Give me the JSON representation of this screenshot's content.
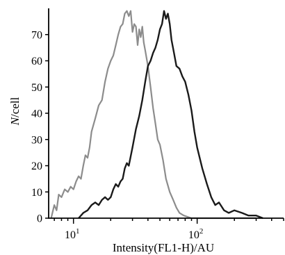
{
  "chart_data": {
    "type": "line",
    "title": "",
    "xlabel": "Intensity(FL1-H)/AU",
    "ylabel_italic": "N",
    "ylabel_rest": "/cell",
    "xscale": "log",
    "xlim": [
      6.3,
      500
    ],
    "ylim": [
      0,
      80
    ],
    "grid": false,
    "legend": "none",
    "yticks": [
      0,
      10,
      20,
      30,
      40,
      50,
      60,
      70
    ],
    "xticks": [
      {
        "value": 10,
        "base": "10",
        "exp": "1"
      },
      {
        "value": 100,
        "base": "10",
        "exp": "2"
      }
    ],
    "series": [
      {
        "color": "#8c8c8c",
        "points": [
          [
            6.6,
            0
          ],
          [
            7.0,
            5
          ],
          [
            7.3,
            3
          ],
          [
            7.6,
            9
          ],
          [
            8,
            8
          ],
          [
            8.5,
            11
          ],
          [
            9,
            10
          ],
          [
            9.5,
            12
          ],
          [
            10,
            11
          ],
          [
            10.5,
            14
          ],
          [
            11,
            16
          ],
          [
            11.5,
            15
          ],
          [
            12,
            20
          ],
          [
            12.5,
            24
          ],
          [
            13,
            23
          ],
          [
            13.5,
            27
          ],
          [
            14,
            33
          ],
          [
            15,
            38
          ],
          [
            16,
            43
          ],
          [
            17,
            45
          ],
          [
            18,
            52
          ],
          [
            19,
            57
          ],
          [
            20,
            60
          ],
          [
            21,
            62
          ],
          [
            22,
            66
          ],
          [
            23,
            70
          ],
          [
            24,
            73
          ],
          [
            25,
            74
          ],
          [
            26,
            78
          ],
          [
            27,
            79
          ],
          [
            28,
            77
          ],
          [
            29,
            79
          ],
          [
            30,
            71
          ],
          [
            31,
            74
          ],
          [
            32,
            73
          ],
          [
            33,
            66
          ],
          [
            34,
            72
          ],
          [
            35,
            69
          ],
          [
            36,
            73
          ],
          [
            37,
            67
          ],
          [
            38,
            64
          ],
          [
            40,
            58
          ],
          [
            42,
            50
          ],
          [
            44,
            42
          ],
          [
            46,
            36
          ],
          [
            48,
            30
          ],
          [
            50,
            28
          ],
          [
            53,
            22
          ],
          [
            56,
            15
          ],
          [
            60,
            10
          ],
          [
            64,
            7
          ],
          [
            68,
            4
          ],
          [
            72,
            2
          ],
          [
            78,
            1
          ],
          [
            90,
            0
          ],
          [
            130,
            0
          ],
          [
            300,
            0
          ]
        ]
      },
      {
        "color": "#1a1a1a",
        "points": [
          [
            11,
            0
          ],
          [
            12,
            2
          ],
          [
            13,
            3
          ],
          [
            14,
            5
          ],
          [
            15,
            6
          ],
          [
            16,
            5
          ],
          [
            17,
            7
          ],
          [
            18,
            8
          ],
          [
            19,
            7
          ],
          [
            20,
            8
          ],
          [
            21,
            11
          ],
          [
            22,
            13
          ],
          [
            23,
            12
          ],
          [
            24,
            14
          ],
          [
            25,
            15
          ],
          [
            26,
            19
          ],
          [
            27,
            21
          ],
          [
            28,
            20
          ],
          [
            30,
            27
          ],
          [
            32,
            34
          ],
          [
            34,
            39
          ],
          [
            36,
            45
          ],
          [
            38,
            52
          ],
          [
            40,
            58
          ],
          [
            42,
            60
          ],
          [
            44,
            63
          ],
          [
            46,
            65
          ],
          [
            48,
            68
          ],
          [
            50,
            72
          ],
          [
            52,
            74
          ],
          [
            54,
            79
          ],
          [
            56,
            76
          ],
          [
            58,
            78
          ],
          [
            60,
            74
          ],
          [
            62,
            68
          ],
          [
            65,
            63
          ],
          [
            68,
            58
          ],
          [
            72,
            57
          ],
          [
            76,
            54
          ],
          [
            80,
            52
          ],
          [
            85,
            47
          ],
          [
            90,
            41
          ],
          [
            95,
            33
          ],
          [
            100,
            27
          ],
          [
            110,
            19
          ],
          [
            120,
            13
          ],
          [
            130,
            8
          ],
          [
            140,
            5
          ],
          [
            150,
            6
          ],
          [
            165,
            3
          ],
          [
            180,
            2
          ],
          [
            200,
            3
          ],
          [
            230,
            2
          ],
          [
            260,
            1
          ],
          [
            300,
            1
          ],
          [
            340,
            0
          ]
        ]
      }
    ]
  }
}
